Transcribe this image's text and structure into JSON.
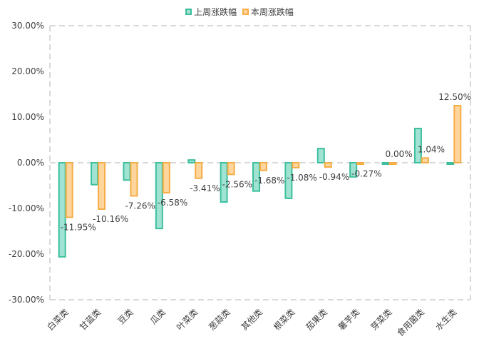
{
  "chart_data": {
    "type": "bar",
    "title": "",
    "xlabel": "",
    "ylabel": "",
    "ylim": [
      -30,
      30
    ],
    "yticks": [
      30,
      20,
      10,
      0,
      -10,
      -20,
      -30
    ],
    "ytick_labels": [
      "30.00%",
      "20.00%",
      "10.00%",
      "0.00%",
      "-10.00%",
      "-20.00%",
      "-30.00%"
    ],
    "grid": false,
    "legend_position": "top",
    "categories": [
      "白菜类",
      "甘蓝类",
      "豆类",
      "瓜类",
      "叶菜类",
      "葱蒜类",
      "其他类",
      "根菜类",
      "茄果类",
      "薯芋类",
      "芽菜类",
      "食用菌类",
      "水生类"
    ],
    "series": [
      {
        "name": "上周涨跌幅",
        "fill": "#a0e3d3",
        "stroke": "#3dbf9d",
        "values": [
          -20.6,
          -4.8,
          -3.8,
          -14.4,
          0.6,
          -8.6,
          -6.2,
          -7.8,
          3.1,
          -3.1,
          -0.3,
          7.5,
          0.0
        ],
        "labels": null
      },
      {
        "name": "本周涨跌幅",
        "fill": "#ffd59e",
        "stroke": "#f5ad46",
        "values": [
          -11.95,
          -10.16,
          -7.26,
          -6.58,
          -3.41,
          -2.56,
          -1.68,
          -1.08,
          -0.94,
          -0.27,
          0.0,
          1.04,
          12.5
        ],
        "labels": [
          "-11.95%",
          "-10.16%",
          "-7.26%",
          "-6.58%",
          "-3.41%",
          "-2.56%",
          "-1.68%",
          "-1.08%",
          "-0.94%",
          "-0.27%",
          "0.00%",
          "1.04%",
          "12.50%"
        ]
      }
    ]
  },
  "colors": {
    "axis_dash": "#d9d9d9",
    "text": "#404040"
  }
}
